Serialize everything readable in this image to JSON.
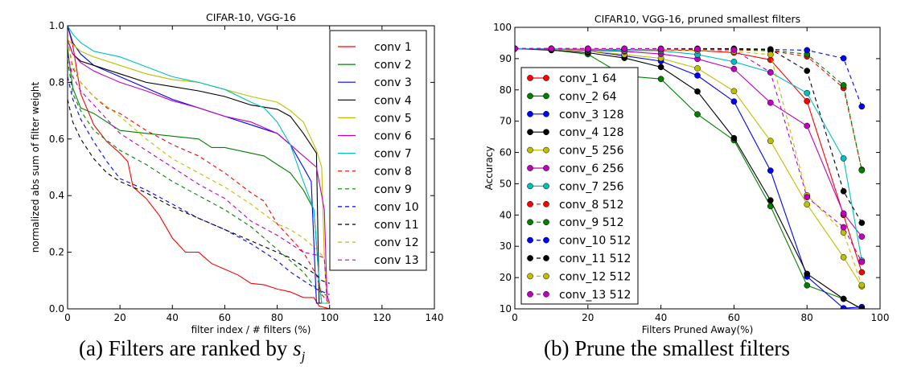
{
  "captions": {
    "a": "(a) Filters are ranked by",
    "a_math": "s",
    "a_math_sub": "j",
    "b": "(b) Prune the smallest filters"
  },
  "chart_data": [
    {
      "type": "line",
      "title": "CIFAR-10, VGG-16",
      "xlabel": "filter index / # filters (%)",
      "ylabel": "normalized abs sum of filter weight",
      "xlim": [
        0,
        140
      ],
      "ylim": [
        0,
        1.0
      ],
      "xticks": [
        "0",
        "20",
        "40",
        "60",
        "80",
        "100",
        "120",
        "140"
      ],
      "yticks": [
        "0.0",
        "0.2",
        "0.4",
        "0.6",
        "0.8",
        "1.0"
      ],
      "grid": false,
      "legend": "top-right",
      "markers": false,
      "series": [
        {
          "name": "conv 1",
          "color": "#ff0000",
          "dash": false,
          "x": [
            0,
            2,
            5,
            10,
            15,
            20,
            23,
            25,
            30,
            35,
            40,
            45,
            50,
            55,
            60,
            65,
            70,
            75,
            80,
            85,
            90,
            94,
            96,
            100
          ],
          "y": [
            1.0,
            0.93,
            0.76,
            0.65,
            0.59,
            0.55,
            0.52,
            0.43,
            0.39,
            0.33,
            0.25,
            0.2,
            0.2,
            0.16,
            0.14,
            0.12,
            0.09,
            0.085,
            0.07,
            0.06,
            0.04,
            0.04,
            0.01,
            0.0
          ]
        },
        {
          "name": "conv 2",
          "color": "#008000",
          "dash": false,
          "x": [
            0,
            2,
            5,
            10,
            15,
            20,
            30,
            40,
            50,
            55,
            60,
            70,
            75,
            80,
            85,
            90,
            94,
            96,
            97,
            100
          ],
          "y": [
            0.92,
            0.78,
            0.71,
            0.69,
            0.66,
            0.63,
            0.62,
            0.61,
            0.6,
            0.57,
            0.57,
            0.55,
            0.54,
            0.51,
            0.48,
            0.42,
            0.35,
            0.1,
            0.02,
            0.02
          ]
        },
        {
          "name": "conv 3",
          "color": "#0000ff",
          "dash": false,
          "x": [
            0,
            2,
            5,
            10,
            20,
            30,
            40,
            50,
            60,
            70,
            80,
            85,
            90,
            93,
            95,
            100
          ],
          "y": [
            1.0,
            0.94,
            0.9,
            0.86,
            0.82,
            0.78,
            0.74,
            0.71,
            0.68,
            0.65,
            0.62,
            0.58,
            0.5,
            0.45,
            0.02,
            0.02
          ]
        },
        {
          "name": "conv 4",
          "color": "#000000",
          "dash": false,
          "x": [
            0,
            2,
            5,
            10,
            20,
            30,
            40,
            50,
            60,
            70,
            80,
            85,
            90,
            95,
            96,
            100
          ],
          "y": [
            0.95,
            0.9,
            0.875,
            0.86,
            0.83,
            0.8,
            0.785,
            0.77,
            0.75,
            0.72,
            0.705,
            0.68,
            0.62,
            0.55,
            0.02,
            0.02
          ]
        },
        {
          "name": "conv 5",
          "color": "#bfbf00",
          "dash": false,
          "x": [
            0,
            5,
            10,
            20,
            30,
            40,
            50,
            60,
            70,
            80,
            85,
            90,
            95,
            97,
            98,
            99,
            100
          ],
          "y": [
            0.95,
            0.91,
            0.89,
            0.86,
            0.83,
            0.81,
            0.8,
            0.775,
            0.75,
            0.73,
            0.7,
            0.66,
            0.56,
            0.5,
            0.18,
            0.02,
            0.02
          ]
        },
        {
          "name": "conv 6",
          "color": "#bf00bf",
          "dash": false,
          "x": [
            0,
            2,
            5,
            10,
            20,
            30,
            40,
            50,
            60,
            70,
            80,
            85,
            90,
            95,
            98,
            99,
            100
          ],
          "y": [
            0.95,
            0.9,
            0.87,
            0.84,
            0.8,
            0.77,
            0.735,
            0.71,
            0.68,
            0.66,
            0.62,
            0.58,
            0.54,
            0.5,
            0.35,
            0.05,
            0.02
          ]
        },
        {
          "name": "conv 7",
          "color": "#00bfbf",
          "dash": false,
          "x": [
            0,
            2,
            5,
            10,
            20,
            30,
            40,
            50,
            60,
            70,
            75,
            80,
            85,
            90,
            94,
            96,
            97,
            100
          ],
          "y": [
            1.0,
            0.97,
            0.94,
            0.91,
            0.89,
            0.855,
            0.82,
            0.8,
            0.775,
            0.73,
            0.71,
            0.66,
            0.58,
            0.45,
            0.35,
            0.1,
            0.02,
            0.02
          ]
        },
        {
          "name": "conv 8",
          "color": "#ff0000",
          "dash": true,
          "x": [
            0,
            2,
            5,
            10,
            15,
            20,
            30,
            40,
            50,
            60,
            70,
            75,
            80,
            85,
            90,
            95,
            97,
            100
          ],
          "y": [
            0.95,
            0.85,
            0.8,
            0.75,
            0.71,
            0.69,
            0.63,
            0.58,
            0.54,
            0.48,
            0.41,
            0.38,
            0.3,
            0.25,
            0.2,
            0.12,
            0.05,
            0.02
          ]
        },
        {
          "name": "conv 9",
          "color": "#008000",
          "dash": true,
          "x": [
            0,
            2,
            5,
            10,
            20,
            30,
            40,
            50,
            60,
            70,
            80,
            85,
            90,
            95,
            100
          ],
          "y": [
            0.88,
            0.76,
            0.7,
            0.63,
            0.56,
            0.51,
            0.45,
            0.4,
            0.35,
            0.29,
            0.21,
            0.17,
            0.13,
            0.07,
            0.04
          ]
        },
        {
          "name": "conv 10",
          "color": "#0000ff",
          "dash": true,
          "x": [
            0,
            2,
            5,
            10,
            15,
            20,
            30,
            40,
            50,
            60,
            70,
            80,
            85,
            90,
            95,
            100
          ],
          "y": [
            0.82,
            0.74,
            0.67,
            0.59,
            0.52,
            0.46,
            0.42,
            0.37,
            0.32,
            0.28,
            0.23,
            0.17,
            0.13,
            0.1,
            0.07,
            0.05
          ]
        },
        {
          "name": "conv 11",
          "color": "#000000",
          "dash": true,
          "x": [
            0,
            2,
            5,
            10,
            15,
            20,
            30,
            40,
            50,
            60,
            70,
            80,
            85,
            90,
            95,
            97,
            100
          ],
          "y": [
            0.74,
            0.66,
            0.6,
            0.53,
            0.48,
            0.45,
            0.41,
            0.36,
            0.32,
            0.28,
            0.24,
            0.2,
            0.18,
            0.15,
            0.12,
            0.1,
            0.09
          ]
        },
        {
          "name": "conv 12",
          "color": "#bfbf00",
          "dash": true,
          "x": [
            0,
            2,
            5,
            10,
            20,
            30,
            40,
            50,
            60,
            70,
            80,
            85,
            90,
            95,
            98,
            99,
            100
          ],
          "y": [
            0.95,
            0.86,
            0.8,
            0.75,
            0.68,
            0.6,
            0.53,
            0.48,
            0.43,
            0.37,
            0.3,
            0.28,
            0.25,
            0.21,
            0.18,
            0.03,
            0.02
          ]
        },
        {
          "name": "conv 13",
          "color": "#bf00bf",
          "dash": true,
          "x": [
            0,
            2,
            5,
            10,
            20,
            30,
            40,
            50,
            60,
            70,
            80,
            85,
            90,
            95,
            98,
            99,
            100
          ],
          "y": [
            0.9,
            0.82,
            0.77,
            0.72,
            0.62,
            0.56,
            0.5,
            0.44,
            0.39,
            0.31,
            0.26,
            0.23,
            0.2,
            0.19,
            0.18,
            0.03,
            0.02
          ]
        }
      ]
    },
    {
      "type": "line",
      "title": "CIFAR10, VGG-16, pruned smallest filters",
      "xlabel": "Filters Pruned Away(%)",
      "ylabel": "Accuracy",
      "xlim": [
        0,
        100
      ],
      "ylim": [
        10,
        100
      ],
      "xticks": [
        "0",
        "20",
        "40",
        "60",
        "80",
        "100"
      ],
      "yticks": [
        "10",
        "20",
        "30",
        "40",
        "50",
        "60",
        "70",
        "80",
        "90",
        "100"
      ],
      "grid": false,
      "legend": "lower-left",
      "markers": true,
      "x": [
        0,
        10,
        20,
        30,
        40,
        50,
        60,
        70,
        80,
        90,
        95
      ],
      "series": [
        {
          "name": "conv_1 64",
          "color": "#ff0000",
          "dash": false,
          "y": [
            93.2,
            93.1,
            93.0,
            92.9,
            92.8,
            92.6,
            91.9,
            89.6,
            76.4,
            40.0,
            21.7
          ]
        },
        {
          "name": "conv_2 64",
          "color": "#008000",
          "dash": false,
          "y": [
            93.2,
            92.8,
            91.4,
            84.5,
            83.5,
            72.2,
            63.9,
            42.8,
            17.5,
            13.2,
            10.0
          ]
        },
        {
          "name": "conv_3 128",
          "color": "#0000ff",
          "dash": false,
          "y": [
            93.2,
            93.0,
            92.5,
            90.9,
            89.2,
            84.6,
            76.3,
            54.2,
            20.3,
            10.2,
            10.6
          ]
        },
        {
          "name": "conv_4 128",
          "color": "#000000",
          "dash": false,
          "y": [
            93.2,
            92.7,
            91.9,
            90.2,
            87.3,
            79.5,
            64.6,
            44.7,
            21.2,
            13.2,
            10.0
          ]
        },
        {
          "name": "conv_5 256",
          "color": "#bfbf00",
          "dash": false,
          "y": [
            93.2,
            93.0,
            92.5,
            91.3,
            90.1,
            86.9,
            79.6,
            63.7,
            43.4,
            26.5,
            17.2
          ]
        },
        {
          "name": "conv_6 256",
          "color": "#bf00bf",
          "dash": false,
          "y": [
            93.2,
            93.1,
            92.7,
            92.3,
            91.5,
            89.9,
            86.7,
            75.9,
            68.5,
            40.5,
            33.1
          ]
        },
        {
          "name": "conv_7 256",
          "color": "#00bfbf",
          "dash": false,
          "y": [
            93.2,
            93.1,
            92.9,
            92.6,
            92.5,
            91.3,
            89.0,
            85.6,
            79.0,
            58.1,
            25.4
          ]
        },
        {
          "name": "conv_8 512",
          "color": "#ff0000",
          "dash": true,
          "y": [
            93.2,
            93.2,
            93.1,
            93.1,
            93.0,
            92.9,
            92.8,
            92.5,
            90.7,
            80.6,
            54.5
          ]
        },
        {
          "name": "conv_9 512",
          "color": "#008000",
          "dash": true,
          "y": [
            93.2,
            93.2,
            93.1,
            93.1,
            93.0,
            93.0,
            92.9,
            92.7,
            91.4,
            81.5,
            54.3
          ]
        },
        {
          "name": "conv_10 512",
          "color": "#0000ff",
          "dash": true,
          "y": [
            93.2,
            93.2,
            93.2,
            93.1,
            93.1,
            93.0,
            93.0,
            92.9,
            92.7,
            90.1,
            74.7
          ]
        },
        {
          "name": "conv_11 512",
          "color": "#000000",
          "dash": true,
          "y": [
            93.2,
            93.2,
            93.2,
            93.2,
            93.2,
            93.2,
            93.2,
            93.0,
            86.1,
            47.6,
            37.5
          ]
        },
        {
          "name": "conv_12 512",
          "color": "#bfbf00",
          "dash": true,
          "y": [
            93.2,
            93.2,
            93.1,
            93.0,
            92.9,
            92.6,
            92.3,
            91.3,
            46.3,
            34.4,
            17.6
          ]
        },
        {
          "name": "conv_13 512",
          "color": "#bf00bf",
          "dash": true,
          "y": [
            93.2,
            93.2,
            93.2,
            93.2,
            93.1,
            93.0,
            92.8,
            85.6,
            45.7,
            36.1,
            25.0
          ]
        }
      ]
    }
  ]
}
